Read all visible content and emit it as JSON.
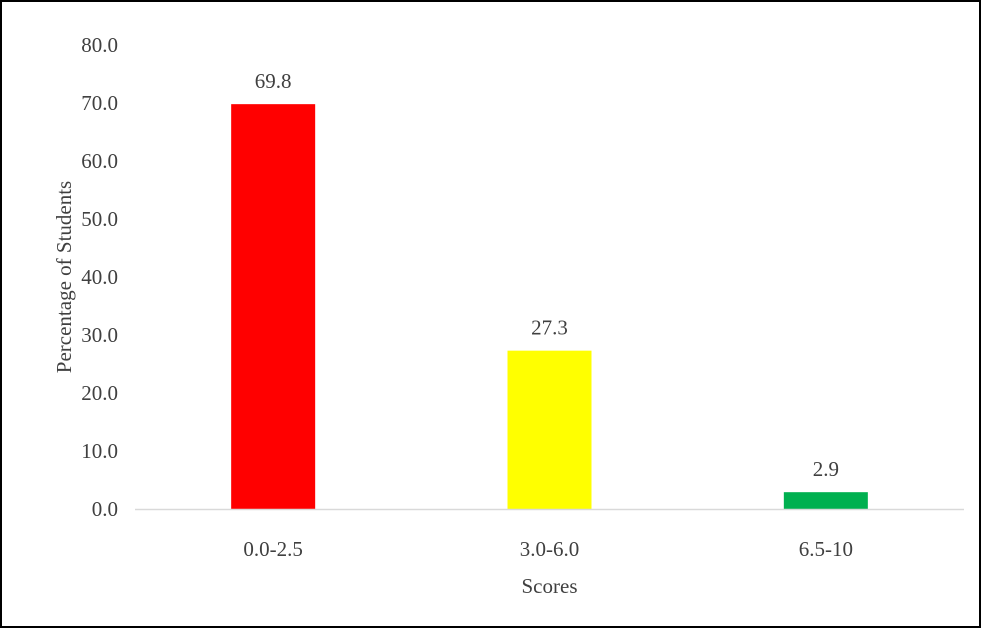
{
  "chart_data": {
    "type": "bar",
    "title": "",
    "xlabel": "Scores",
    "ylabel": "Percentage of Students",
    "categories": [
      "0.0-2.5",
      "3.0-6.0",
      "6.5-10"
    ],
    "values": [
      69.8,
      27.3,
      2.9
    ],
    "data_labels": [
      "69.8",
      "27.3",
      "2.9"
    ],
    "bar_colors": [
      "#ff0000",
      "#ffff00",
      "#00b050"
    ],
    "ylim": [
      0,
      80
    ],
    "yticks": [
      0,
      10,
      20,
      30,
      40,
      50,
      60,
      70,
      80
    ],
    "ytick_labels": [
      "0.0",
      "10.0",
      "20.0",
      "30.0",
      "40.0",
      "50.0",
      "60.0",
      "70.0",
      "80.0"
    ],
    "grid": false,
    "legend": "none",
    "axis_color": "#d9d9d9",
    "text_color": "#404040"
  }
}
